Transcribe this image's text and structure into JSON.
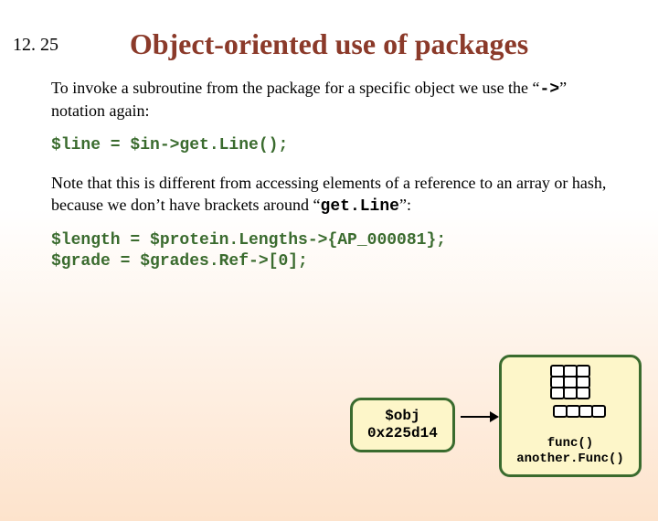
{
  "slideNumber": "12. 25",
  "title": "Object-oriented use of packages",
  "para1_pre": "To invoke a subroutine from the package for a specific object we use the “",
  "para1_arrow": "->",
  "para1_post": "” notation again:",
  "code1": "$line = $in->get.Line();",
  "para2_pre": "Note that this is different from accessing elements of a reference to an array or hash, because we don’t have brackets around “",
  "para2_mono": "get.Line",
  "para2_post": "”:",
  "code2a": "$length = $protein.Lengths->{AP_000081};",
  "code2b": "$grade = $grades.Ref->[0];",
  "objLabel": "$obj",
  "objAddr": "0x225d14",
  "func1": "func()",
  "func2": "another.Func()"
}
